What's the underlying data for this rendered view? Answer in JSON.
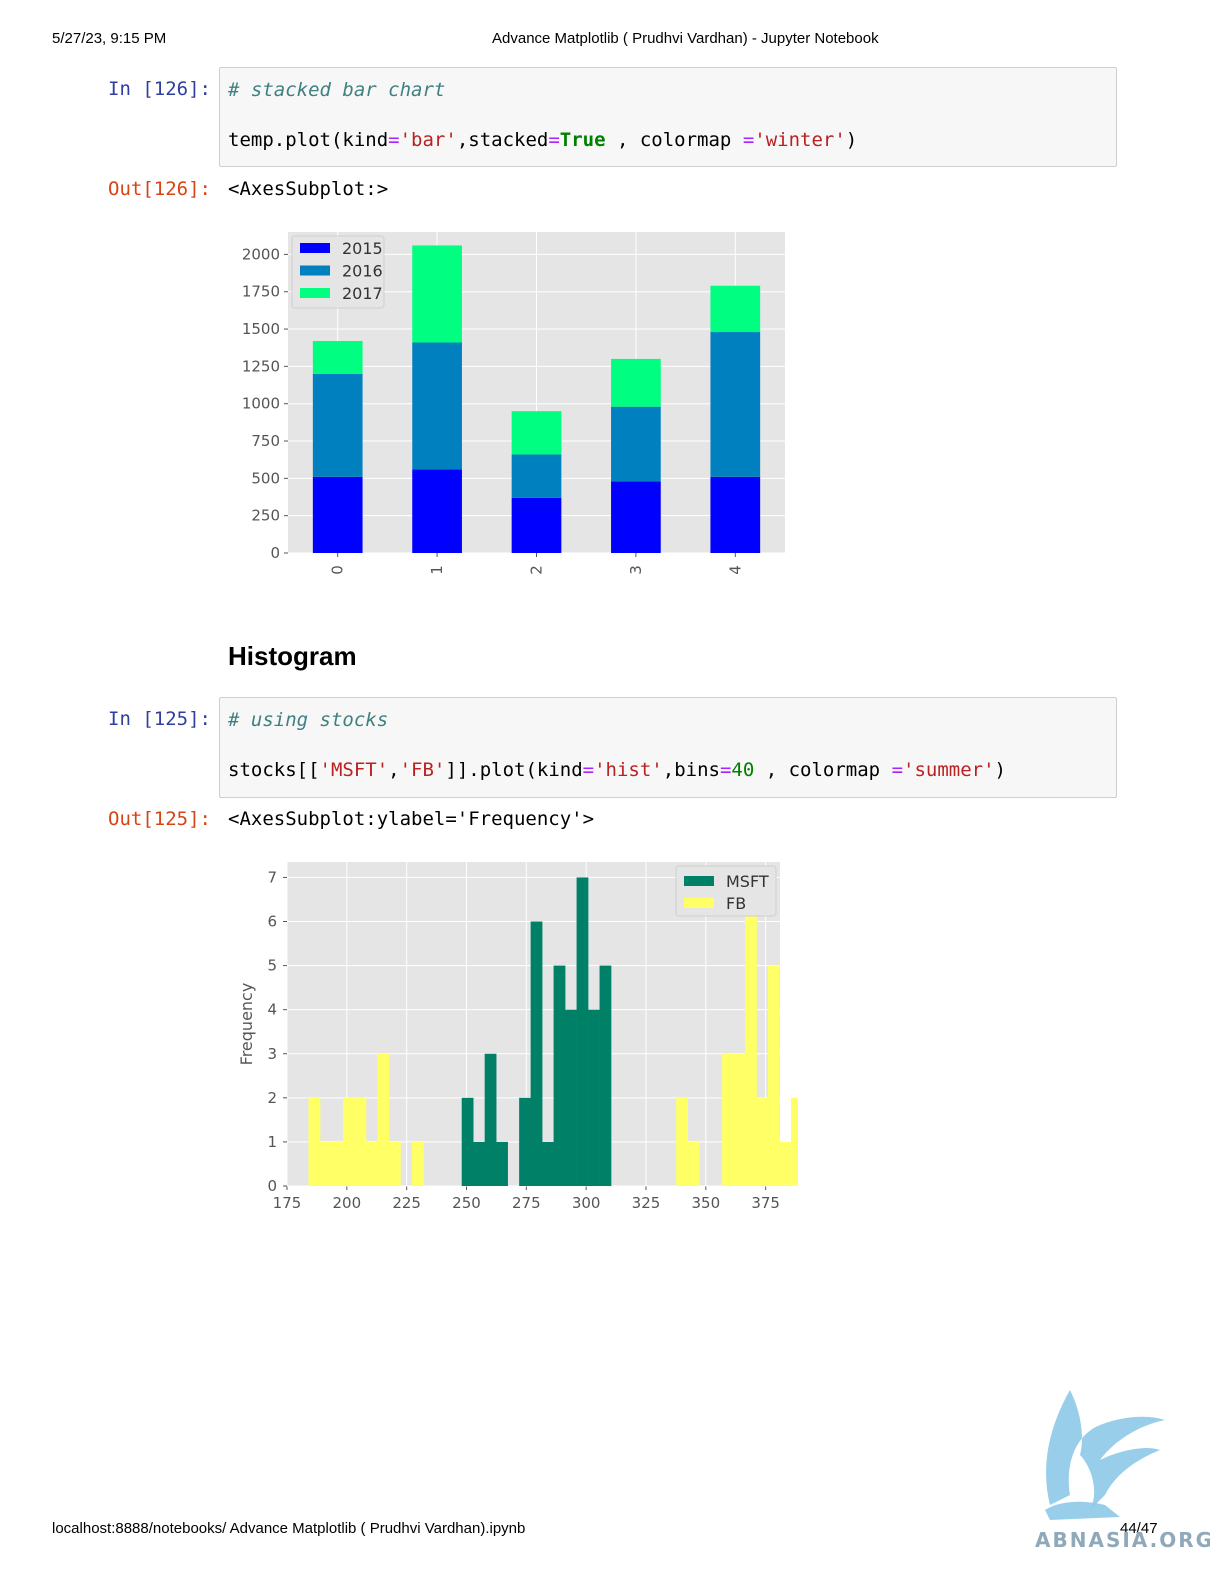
{
  "header": {
    "datetime": "5/27/23, 9:15 PM",
    "title": "Advance Matplotlib ( Prudhvi Vardhan) - Jupyter Notebook"
  },
  "cell1": {
    "in_prompt": "In [126]:",
    "comment": "# stacked bar chart",
    "code": {
      "a": "temp.plot(kind",
      "eq1": "=",
      "s1": "'bar'",
      "b": ",stacked",
      "eq2": "=",
      "kw": "True",
      "c": " , colormap ",
      "eq3": "=",
      "s2": "'winter'",
      "d": ")"
    },
    "out_prompt": "Out[126]:",
    "out_text": "<AxesSubplot:>"
  },
  "section_heading": "Histogram",
  "cell2": {
    "in_prompt": "In [125]:",
    "comment": "# using stocks",
    "code": {
      "a": "stocks[[",
      "s1": "'MSFT'",
      "b": ",",
      "s2": "'FB'",
      "c": "]].plot(kind",
      "eq1": "=",
      "s3": "'hist'",
      "d": ",bins",
      "eq2": "=",
      "num": "40",
      "e": " , colormap ",
      "eq3": "=",
      "s4": "'summer'",
      "f": ")"
    },
    "out_prompt": "Out[125]:",
    "out_text": "<AxesSubplot:ylabel='Frequency'>"
  },
  "footer": {
    "url": "localhost:8888/notebooks/ Advance Matplotlib ( Prudhvi Vardhan).ipynb",
    "page": "44/47",
    "watermark_text": "ABNASIA.ORG"
  },
  "chart_data": [
    {
      "type": "bar",
      "stacked": true,
      "categories": [
        "0",
        "1",
        "2",
        "3",
        "4"
      ],
      "series": [
        {
          "name": "2015",
          "values": [
            510,
            560,
            370,
            480,
            510
          ],
          "color": "#0000ff"
        },
        {
          "name": "2016",
          "values": [
            690,
            850,
            290,
            500,
            970
          ],
          "color": "#0080bf"
        },
        {
          "name": "2017",
          "values": [
            220,
            650,
            290,
            320,
            310
          ],
          "color": "#00ff80"
        }
      ],
      "yticks": [
        0,
        250,
        500,
        750,
        1000,
        1250,
        1500,
        1750,
        2000
      ],
      "ylim": [
        0,
        2150
      ],
      "grid": true,
      "legend": "top-left",
      "background": "#e5e5e5"
    },
    {
      "type": "histogram",
      "ylabel": "Frequency",
      "xticks": [
        175,
        200,
        225,
        250,
        275,
        300,
        325,
        350,
        375
      ],
      "yticks": [
        0,
        1,
        2,
        3,
        4,
        5,
        6,
        7
      ],
      "xlim": [
        175,
        381
      ],
      "ylim": [
        0,
        7.35
      ],
      "grid": true,
      "legend": "top-right",
      "background": "#e5e5e5",
      "series": [
        {
          "name": "MSFT",
          "color": "#008066",
          "bin_start": 248,
          "bin_width": 4.8,
          "counts": [
            2,
            1,
            3,
            1,
            0,
            2,
            6,
            1,
            5,
            4,
            7,
            4,
            5,
            0,
            0
          ]
        },
        {
          "name": "FB",
          "color": "#ffff66",
          "bin_start": 184,
          "bin_width": 4.8,
          "counts": [
            2,
            1,
            1,
            2,
            2,
            1,
            3,
            1,
            0,
            1,
            0,
            0,
            0,
            0,
            0,
            0,
            0,
            0,
            0,
            0,
            0,
            0,
            0,
            0,
            0,
            0,
            0,
            0,
            0,
            0,
            0,
            0,
            2,
            1,
            0,
            0,
            3,
            3,
            7,
            2,
            5,
            1,
            2,
            2,
            3,
            1,
            2,
            2
          ]
        }
      ]
    }
  ]
}
